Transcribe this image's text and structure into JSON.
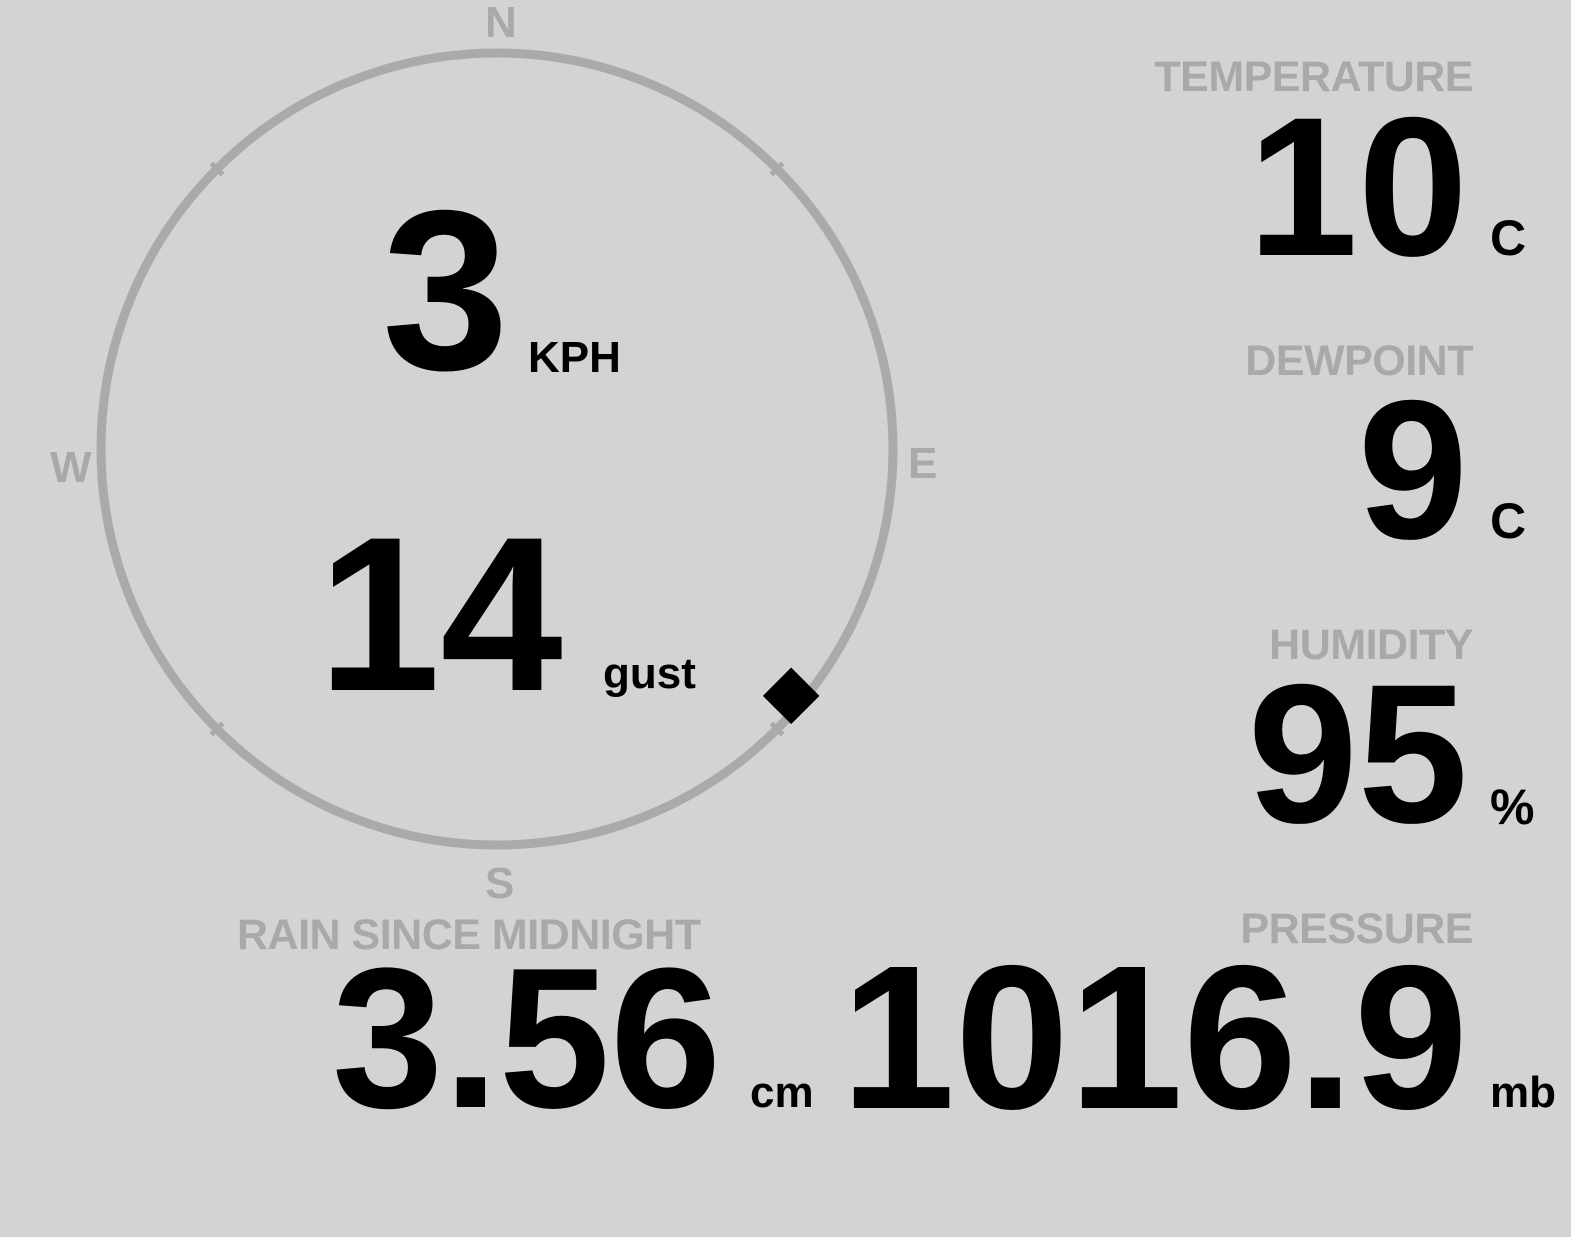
{
  "compass": {
    "north": "N",
    "south": "S",
    "east": "E",
    "west": "W",
    "wind_direction_deg": 130,
    "ring_color": "#aaaaaa"
  },
  "wind": {
    "speed": "3",
    "speed_unit": "KPH",
    "gust": "14",
    "gust_label": "gust"
  },
  "temperature": {
    "label": "TEMPERATURE",
    "value": "10",
    "unit": "C"
  },
  "dewpoint": {
    "label": "DEWPOINT",
    "value": "9",
    "unit": "C"
  },
  "humidity": {
    "label": "HUMIDITY",
    "value": "95",
    "unit": "%"
  },
  "pressure": {
    "label": "PRESSURE",
    "value": "1016.9",
    "unit": "mb"
  },
  "rain": {
    "label": "RAIN SINCE MIDNIGHT",
    "value": "3.56",
    "unit": "cm"
  },
  "colors": {
    "background": "#d3d3d3",
    "label": "#a9a9a9",
    "value": "#000000"
  }
}
